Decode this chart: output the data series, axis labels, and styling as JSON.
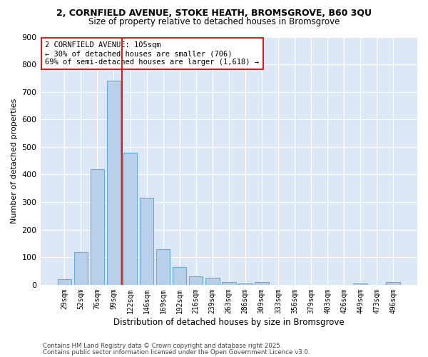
{
  "title1": "2, CORNFIELD AVENUE, STOKE HEATH, BROMSGROVE, B60 3QU",
  "title2": "Size of property relative to detached houses in Bromsgrove",
  "xlabel": "Distribution of detached houses by size in Bromsgrove",
  "ylabel": "Number of detached properties",
  "bar_labels": [
    "29sqm",
    "52sqm",
    "76sqm",
    "99sqm",
    "122sqm",
    "146sqm",
    "169sqm",
    "192sqm",
    "216sqm",
    "239sqm",
    "263sqm",
    "286sqm",
    "309sqm",
    "333sqm",
    "356sqm",
    "379sqm",
    "403sqm",
    "426sqm",
    "449sqm",
    "473sqm",
    "496sqm"
  ],
  "bar_values": [
    20,
    120,
    420,
    740,
    480,
    315,
    130,
    65,
    30,
    25,
    10,
    5,
    10,
    0,
    0,
    0,
    0,
    0,
    5,
    0,
    10
  ],
  "bar_color": "#b8d0ea",
  "bar_edgecolor": "#6aaad4",
  "figure_bg": "#ffffff",
  "plot_bg_color": "#dce8f5",
  "vline_color": "#cc2222",
  "annotation_text": "2 CORNFIELD AVENUE: 105sqm\n← 30% of detached houses are smaller (706)\n69% of semi-detached houses are larger (1,618) →",
  "annotation_box_facecolor": "#ffffff",
  "annotation_box_edgecolor": "#cc2222",
  "ylim": [
    0,
    900
  ],
  "yticks": [
    0,
    100,
    200,
    300,
    400,
    500,
    600,
    700,
    800,
    900
  ],
  "footnote1": "Contains HM Land Registry data © Crown copyright and database right 2025.",
  "footnote2": "Contains public sector information licensed under the Open Government Licence v3.0."
}
